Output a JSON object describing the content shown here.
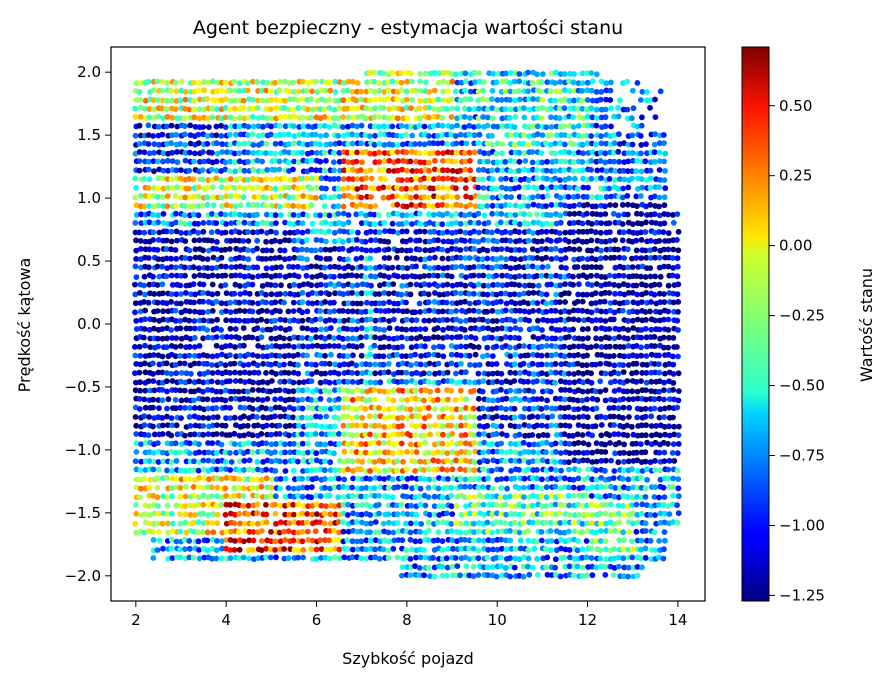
{
  "chart_data": {
    "type": "scatter",
    "title": "Agent bezpieczny - estymacja wartości stanu",
    "xlabel": "Szybkość pojazd",
    "ylabel": "Prędkość kątowa",
    "xlim": [
      1.45,
      14.6
    ],
    "ylim": [
      -2.2,
      2.2
    ],
    "xticks": [
      2,
      4,
      6,
      8,
      10,
      12,
      14
    ],
    "xtick_labels": [
      "2",
      "4",
      "6",
      "8",
      "10",
      "12",
      "14"
    ],
    "yticks": [
      -2.0,
      -1.5,
      -1.0,
      -0.5,
      0.0,
      0.5,
      1.0,
      1.5,
      2.0
    ],
    "ytick_labels": [
      "−2.0",
      "−1.5",
      "−1.0",
      "−0.5",
      "0.0",
      "0.5",
      "1.0",
      "1.5",
      "2.0"
    ],
    "colormap": "jet",
    "colorbar": {
      "label": "Wartość stanu",
      "vmin": -1.27,
      "vmax": 0.71,
      "ticks": [
        -1.25,
        -1.0,
        -0.75,
        -0.5,
        -0.25,
        0.0,
        0.25,
        0.5
      ],
      "tick_labels": [
        "−1.25",
        "−1.00",
        "−0.75",
        "−0.50",
        "−0.25",
        "0.00",
        "0.25",
        "0.50"
      ]
    },
    "x_grid_step": 0.1,
    "y_grid_step": 0.07,
    "value_regions": [
      {
        "x": [
          2.0,
          14.0
        ],
        "y": [
          -2.0,
          2.0
        ],
        "value": -0.7
      },
      {
        "x": [
          2.0,
          5.5
        ],
        "y": [
          -0.9,
          0.8
        ],
        "value": -1.15
      },
      {
        "x": [
          5.5,
          7.0
        ],
        "y": [
          -0.5,
          0.6
        ],
        "value": -1.0
      },
      {
        "x": [
          7.2,
          9.5
        ],
        "y": [
          -0.4,
          0.8
        ],
        "value": -1.05
      },
      {
        "x": [
          9.5,
          11.5
        ],
        "y": [
          -0.9,
          0.8
        ],
        "value": -1.0
      },
      {
        "x": [
          11.5,
          14.0
        ],
        "y": [
          -1.1,
          1.0
        ],
        "value": -1.2
      },
      {
        "x": [
          2.0,
          4.0
        ],
        "y": [
          1.2,
          1.6
        ],
        "value": -1.0
      },
      {
        "x": [
          2.0,
          9.0
        ],
        "y": [
          1.6,
          2.0
        ],
        "value": -0.1
      },
      {
        "x": [
          2.0,
          6.0
        ],
        "y": [
          0.9,
          1.2
        ],
        "value": -0.15
      },
      {
        "x": [
          6.5,
          9.5
        ],
        "y": [
          0.9,
          1.4
        ],
        "value": 0.3
      },
      {
        "x": [
          2.0,
          5.0
        ],
        "y": [
          -1.7,
          -1.2
        ],
        "value": -0.1
      },
      {
        "x": [
          4.0,
          6.5
        ],
        "y": [
          -1.8,
          -1.4
        ],
        "value": 0.35
      },
      {
        "x": [
          6.5,
          9.5
        ],
        "y": [
          -1.2,
          -0.5
        ],
        "value": 0.05
      },
      {
        "x": [
          9.0,
          12.0
        ],
        "y": [
          -1.7,
          -1.3
        ],
        "value": -0.4
      },
      {
        "x": [
          12.0,
          13.0
        ],
        "y": [
          -1.8,
          -1.4
        ],
        "value": -0.3
      },
      {
        "x": [
          12.0,
          14.0
        ],
        "y": [
          1.2,
          2.0
        ],
        "value": -0.8
      },
      {
        "x": [
          9.5,
          12.0
        ],
        "y": [
          1.4,
          2.0
        ],
        "value": -0.5
      }
    ]
  }
}
